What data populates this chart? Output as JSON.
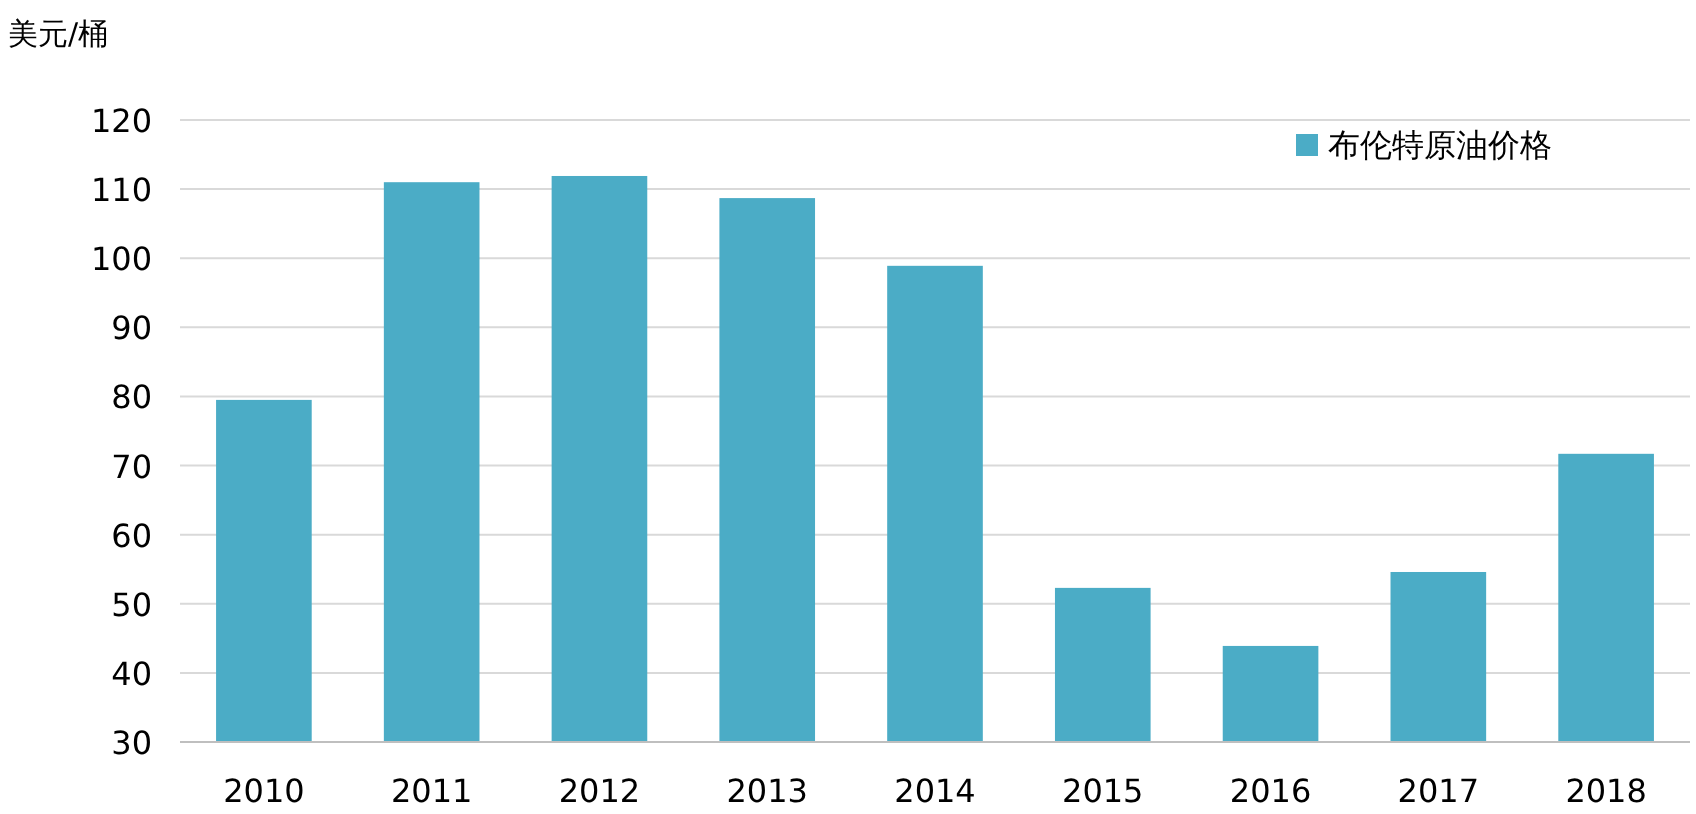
{
  "chart_data": {
    "type": "bar",
    "ylabel": "美元/桶",
    "categories": [
      "2010",
      "2011",
      "2012",
      "2013",
      "2014",
      "2015",
      "2016",
      "2017",
      "2018"
    ],
    "series": [
      {
        "name": "布伦特原油价格",
        "color": "#4bacc6",
        "values": [
          79.5,
          111,
          111.9,
          108.7,
          98.9,
          52.3,
          43.9,
          54.6,
          71.7
        ]
      }
    ],
    "ylim": [
      30,
      120
    ],
    "yticks": [
      30,
      40,
      50,
      60,
      70,
      80,
      90,
      100,
      110,
      120
    ],
    "grid": "y",
    "legend": "top right"
  }
}
